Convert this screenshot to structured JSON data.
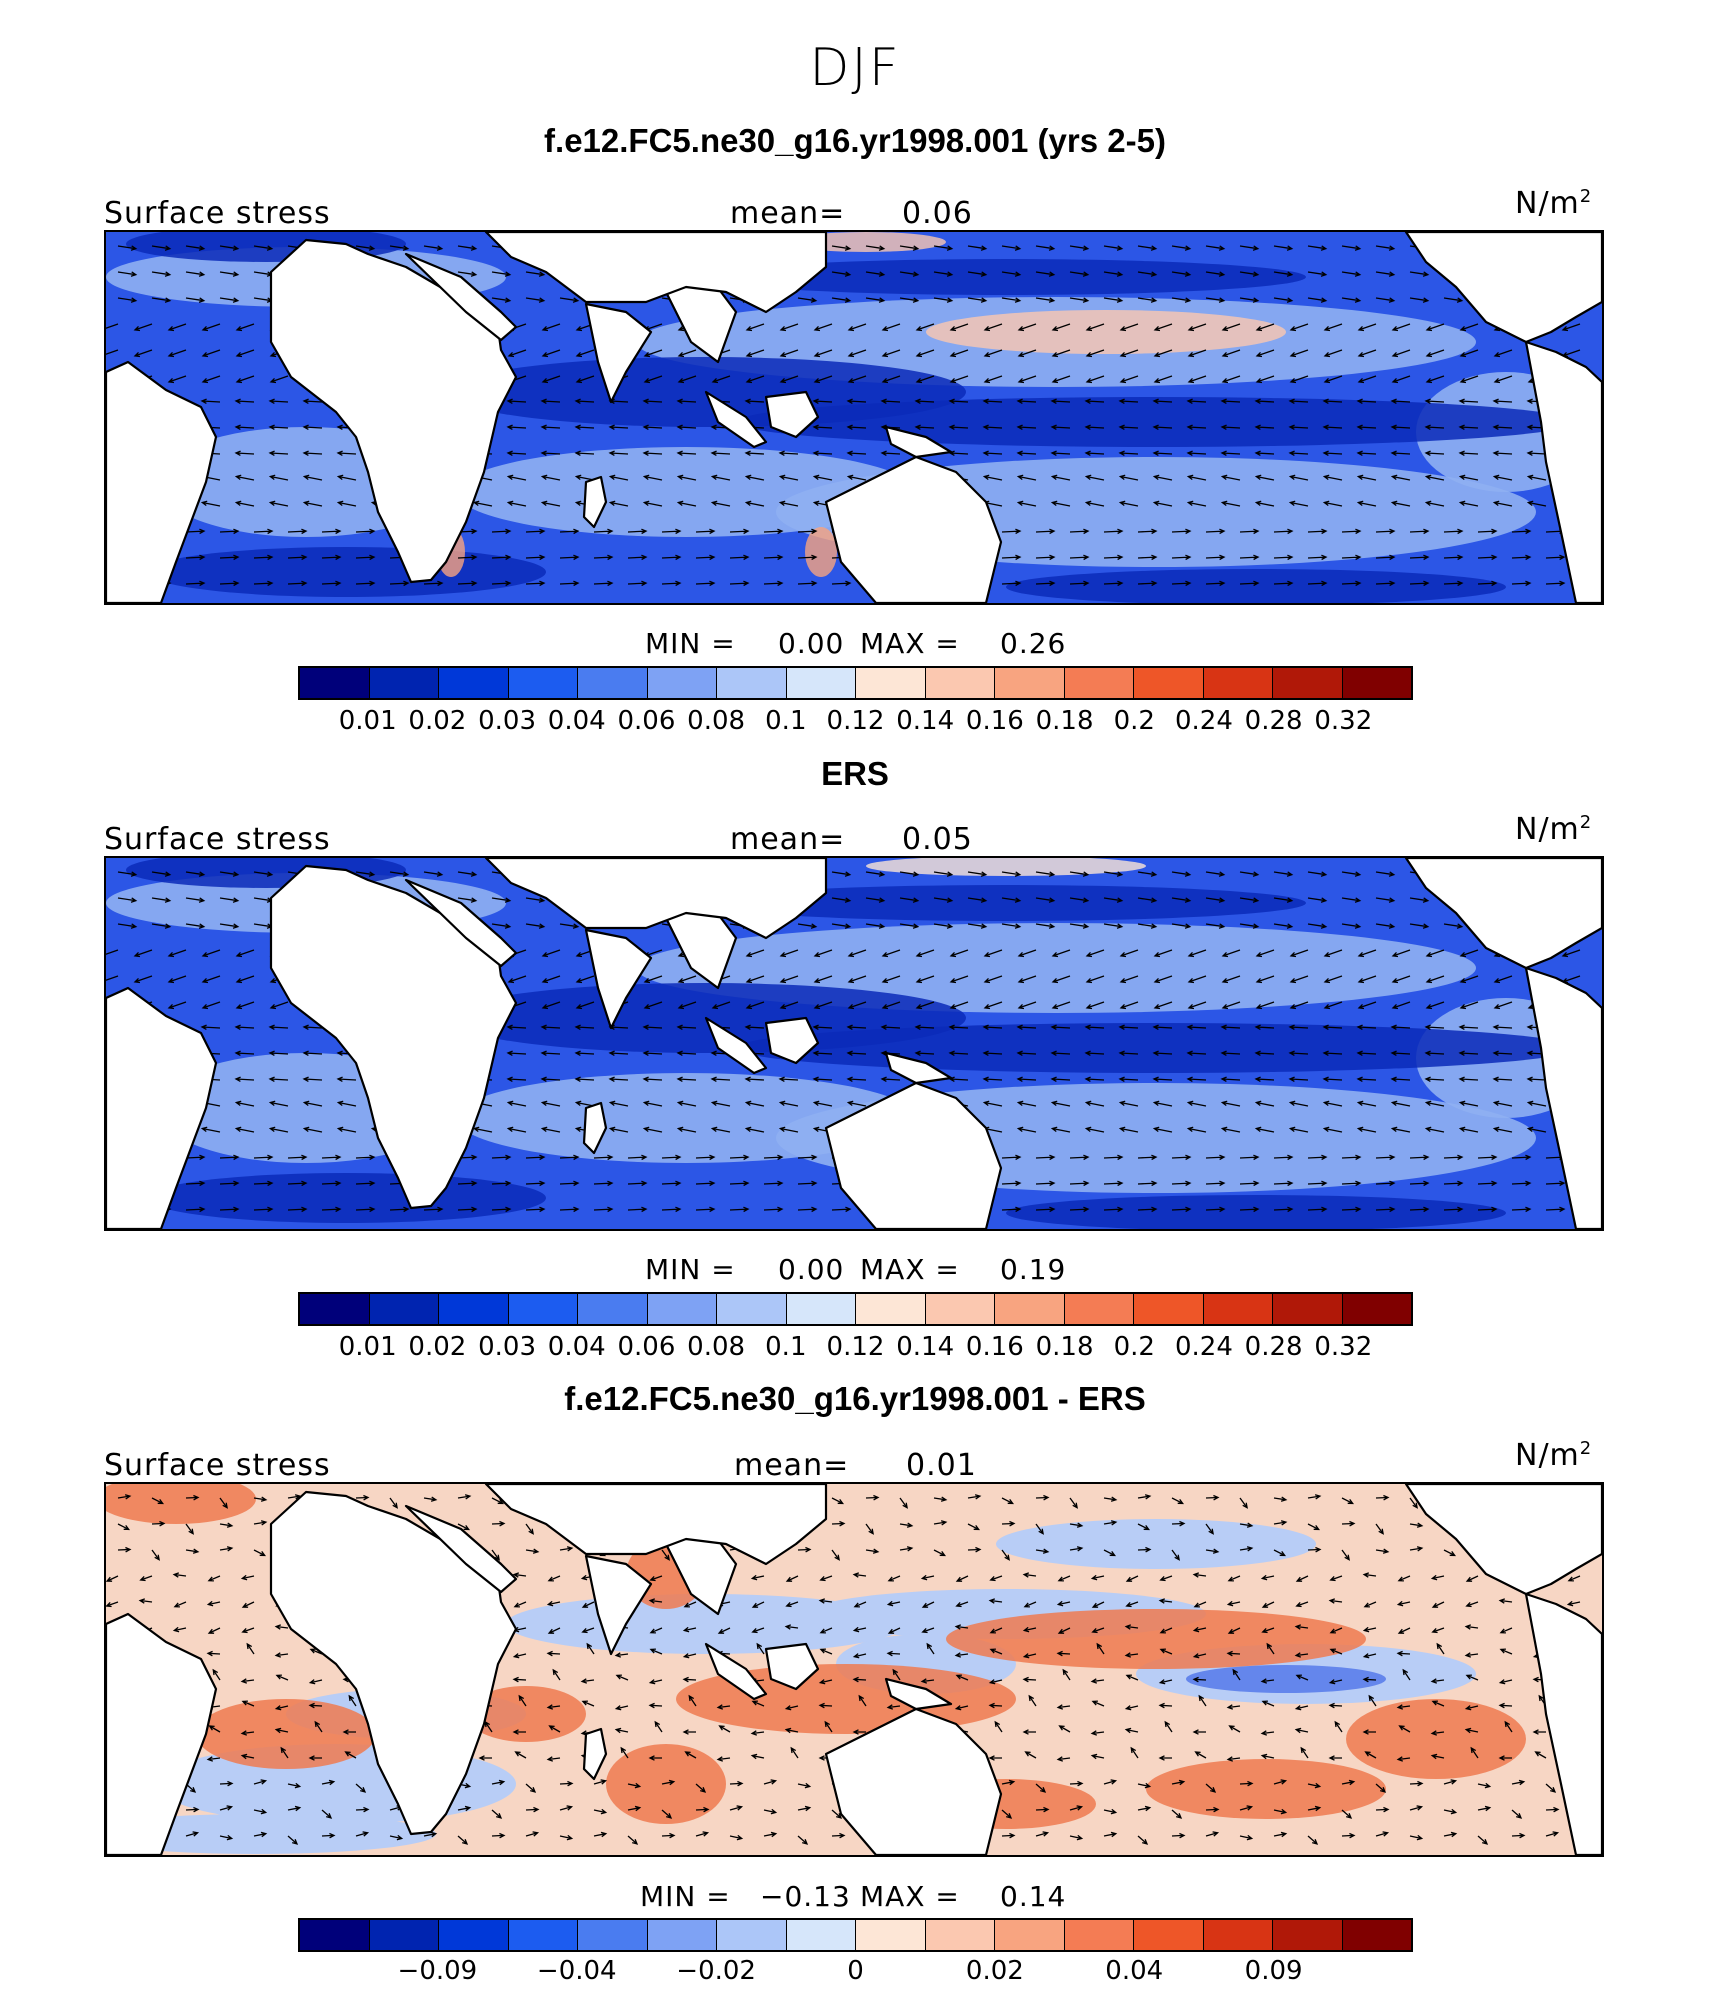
{
  "title": "DJF",
  "colors": {
    "palette": [
      "#00007a",
      "#0024b0",
      "#0038d8",
      "#1c5cf0",
      "#4a7cf0",
      "#7ea2f4",
      "#acc6f8",
      "#d6e6fa",
      "#fde6d6",
      "#fbc8b0",
      "#f8a480",
      "#f47c54",
      "#ee5628",
      "#d83414",
      "#b01808",
      "#800000"
    ],
    "ocean_base": "#2c56e6",
    "ocean_light": "#8fb0f2",
    "ocean_dark": "#0a2ab8",
    "diff_base": "#f7d6c4",
    "diff_blue": "#b8cdf6",
    "diff_red": "#ef7a50",
    "land": "#ffffff",
    "coast": "#000000",
    "vector": "#000000"
  },
  "panels": [
    {
      "title": "f.e12.FC5.ne30_g16.yr1998.001 (yrs 2-5)",
      "variable": "Surface stress",
      "mean_label": "mean=",
      "mean_value": "0.06",
      "units": "N/m",
      "units_sup": "2",
      "min_label": "MIN =",
      "min_value": "0.00",
      "max_label": "MAX =",
      "max_value": "0.26",
      "colorbar_ticks": [
        "0.01",
        "0.02",
        "0.03",
        "0.04",
        "0.06",
        "0.08",
        "0.1",
        "0.12",
        "0.14",
        "0.16",
        "0.18",
        "0.2",
        "0.24",
        "0.28",
        "0.32"
      ],
      "field": "model"
    },
    {
      "title": "ERS",
      "variable": "Surface stress",
      "mean_label": "mean=",
      "mean_value": "0.05",
      "units": "N/m",
      "units_sup": "2",
      "min_label": "MIN =",
      "min_value": "0.00",
      "max_label": "MAX =",
      "max_value": "0.19",
      "colorbar_ticks": [
        "0.01",
        "0.02",
        "0.03",
        "0.04",
        "0.06",
        "0.08",
        "0.1",
        "0.12",
        "0.14",
        "0.16",
        "0.18",
        "0.2",
        "0.24",
        "0.28",
        "0.32"
      ],
      "field": "obs"
    },
    {
      "title": "f.e12.FC5.ne30_g16.yr1998.001 - ERS",
      "variable": "Surface stress",
      "mean_label": "mean=",
      "mean_value": "0.01",
      "units": "N/m",
      "units_sup": "2",
      "min_label": "MIN =",
      "min_value": "−0.13",
      "max_label": "MAX =",
      "max_value": "0.14",
      "colorbar_ticks": [
        "−0.09",
        "−0.04",
        "−0.02",
        "0",
        "0.02",
        "0.04",
        "0.09"
      ],
      "field": "diff"
    }
  ]
}
